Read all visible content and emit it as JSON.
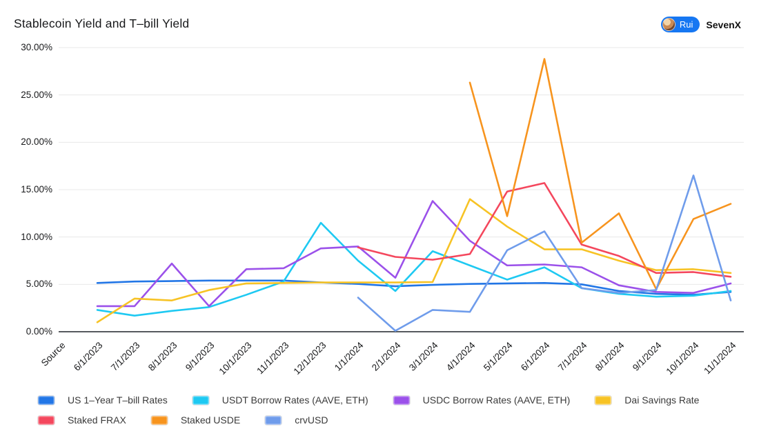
{
  "header": {
    "title": "Stablecoin Yield and T–bill Yield",
    "author_badge": "Rui",
    "org": "SevenX"
  },
  "chart_data": {
    "type": "line",
    "title": "Stablecoin Yield and T–bill Yield",
    "x_first_tick": "Source",
    "x": [
      "6/1/2023",
      "7/1/2023",
      "8/1/2023",
      "9/1/2023",
      "10/1/2023",
      "11/1/2023",
      "12/1/2023",
      "1/1/2024",
      "2/1/2024",
      "3/1/2024",
      "4/1/2024",
      "5/1/2024",
      "6/1/2024",
      "7/1/2024",
      "8/1/2024",
      "9/1/2024",
      "10/1/2024",
      "11/1/2024"
    ],
    "y_ticks": [
      "0.00%",
      "5.00%",
      "10.00%",
      "15.00%",
      "20.00%",
      "25.00%",
      "30.00%"
    ],
    "ylim": [
      0,
      30
    ],
    "grid": true,
    "legend_position": "bottom",
    "series": [
      {
        "name": "US 1–Year T–bill Rates",
        "color": "#2276e6",
        "values": [
          5.15,
          5.3,
          5.35,
          5.4,
          5.4,
          5.4,
          5.2,
          5.05,
          4.8,
          4.95,
          5.05,
          5.1,
          5.15,
          5.0,
          4.3,
          4.0,
          3.9,
          4.2
        ]
      },
      {
        "name": "USDT Borrow Rates (AAVE, ETH)",
        "color": "#1ec9f2",
        "values": [
          2.3,
          1.7,
          2.2,
          2.6,
          3.9,
          5.3,
          11.5,
          7.5,
          4.3,
          8.5,
          7.0,
          5.5,
          6.8,
          4.6,
          4.0,
          3.7,
          3.8,
          4.3
        ]
      },
      {
        "name": "USDC Borrow Rates (AAVE, ETH)",
        "color": "#9b51ea",
        "values": [
          2.7,
          2.7,
          7.2,
          2.7,
          6.6,
          6.7,
          8.8,
          9.0,
          5.7,
          13.8,
          9.6,
          7.0,
          7.1,
          6.8,
          4.9,
          4.2,
          4.1,
          5.1
        ]
      },
      {
        "name": "Dai Savings Rate",
        "color": "#f7c325",
        "values": [
          1.0,
          3.5,
          3.3,
          4.4,
          5.1,
          5.15,
          5.2,
          5.2,
          5.2,
          5.25,
          14.0,
          11.1,
          8.7,
          8.7,
          7.5,
          6.5,
          6.6,
          6.2
        ]
      },
      {
        "name": "Staked FRAX",
        "color": "#f4475d",
        "values": [
          null,
          null,
          null,
          null,
          null,
          null,
          null,
          8.9,
          7.9,
          7.6,
          8.2,
          14.8,
          15.7,
          9.2,
          8.0,
          6.2,
          6.3,
          5.8
        ]
      },
      {
        "name": "Staked USDE",
        "color": "#f7941e",
        "values": [
          null,
          null,
          null,
          null,
          null,
          null,
          null,
          null,
          null,
          null,
          26.3,
          12.2,
          28.8,
          9.4,
          12.5,
          4.5,
          11.9,
          13.5
        ]
      },
      {
        "name": "crvUSD",
        "color": "#6f9ceb",
        "values": [
          null,
          null,
          null,
          null,
          null,
          null,
          null,
          3.6,
          0.1,
          2.3,
          2.1,
          8.6,
          10.6,
          4.6,
          4.1,
          4.4,
          16.5,
          3.3
        ]
      }
    ]
  }
}
